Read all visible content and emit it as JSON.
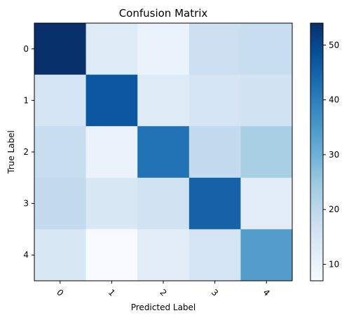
{
  "chart_data": {
    "type": "heatmap",
    "title": "Confusion Matrix",
    "xlabel": "Predicted Label",
    "ylabel": "True Label",
    "x_categories": [
      "0",
      "1",
      "2",
      "3",
      "4"
    ],
    "y_categories": [
      "0",
      "1",
      "2",
      "3",
      "4"
    ],
    "values": [
      [
        54,
        13,
        10,
        17,
        18
      ],
      [
        15,
        47,
        13,
        15,
        16
      ],
      [
        18,
        10,
        42,
        19,
        23
      ],
      [
        19,
        14,
        16,
        45,
        12
      ],
      [
        14,
        7,
        12,
        15,
        34
      ]
    ],
    "colorbar": {
      "range": [
        7,
        54
      ],
      "ticks": [
        10,
        20,
        30,
        40,
        50
      ],
      "colormap": "Blues"
    },
    "grid": false
  }
}
